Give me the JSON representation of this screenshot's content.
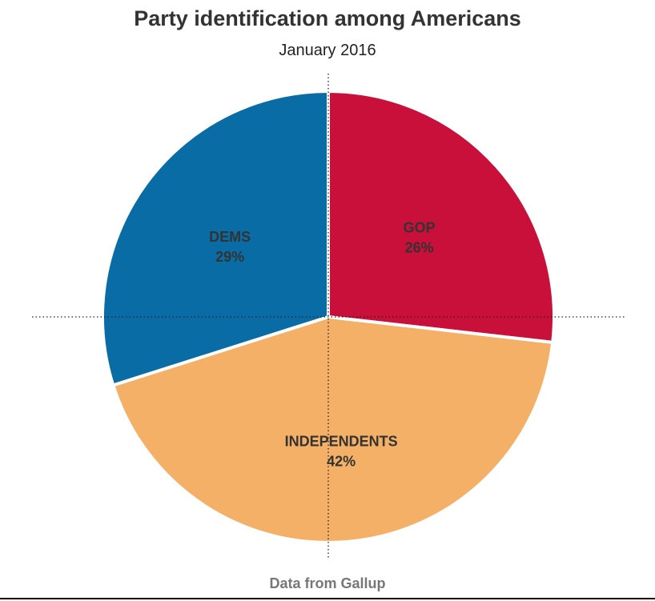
{
  "chart_data": {
    "type": "pie",
    "title": "Party identification among Americans",
    "subtitle": "January 2016",
    "source": "Data from Gallup",
    "slices": [
      {
        "label": "GOP",
        "value": 26,
        "value_text": "26%",
        "color": "#c8103a"
      },
      {
        "label": "INDEPENDENTS",
        "value": 42,
        "value_text": "42%",
        "color": "#f3b066"
      },
      {
        "label": "DEMS",
        "value": 29,
        "value_text": "29%",
        "color": "#0a6ca5"
      }
    ],
    "reference_lines": "dotted crosshair through center",
    "legend": "none"
  }
}
